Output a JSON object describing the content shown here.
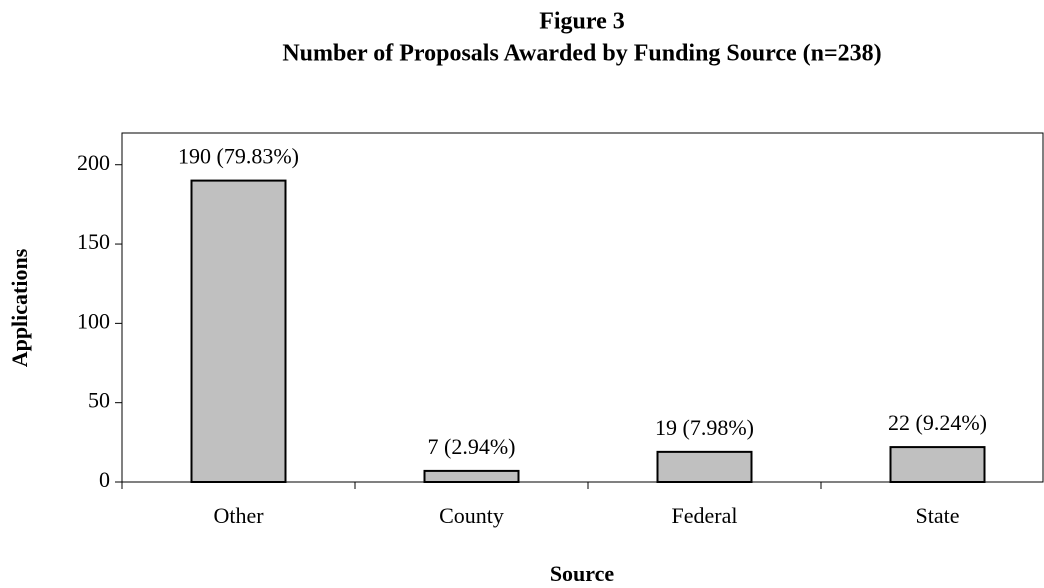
{
  "chart_data": {
    "type": "bar",
    "title": "Figure 3",
    "subtitle": "Number of Proposals Awarded by Funding Source (n=238)",
    "x_label": "Source",
    "y_label": "Applications",
    "categories": [
      "Other",
      "County",
      "Federal",
      "State"
    ],
    "values": [
      190,
      7,
      19,
      22
    ],
    "value_labels": [
      "190 (79.83%)",
      "7 (2.94%)",
      "19 (7.98%)",
      "22 (9.24%)"
    ],
    "color": "#c0c0c0",
    "ylim": [
      0,
      220
    ],
    "yticks": [
      0,
      50,
      100,
      150,
      200
    ],
    "grid": false
  }
}
